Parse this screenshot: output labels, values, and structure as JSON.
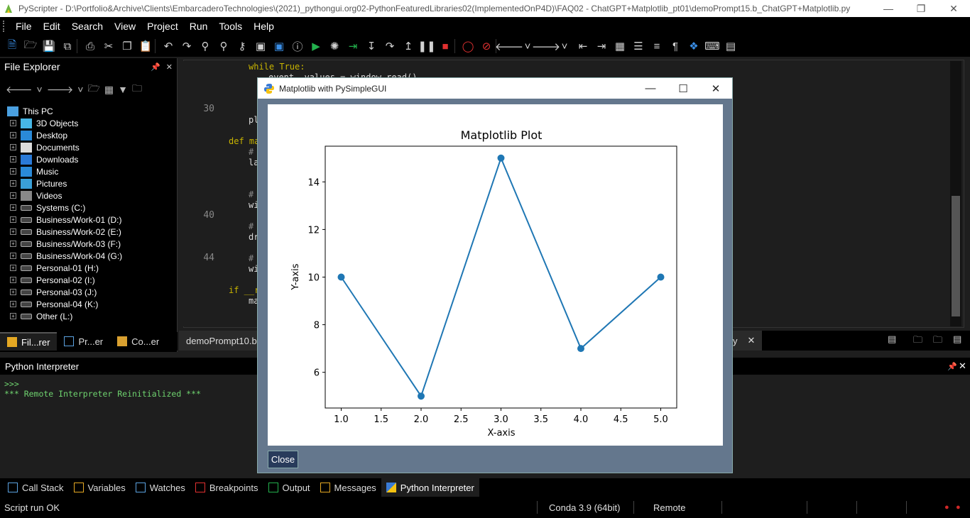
{
  "window": {
    "title": "PyScripter - D:\\Portfolio&Archive\\Clients\\EmbarcaderoTechnologies\\(2021)_pythongui.org02-PythonFeaturedLibraries02(ImplementedOnP4D)\\FAQ02 - ChatGPT+Matplotlib_pt01\\demoPrompt15.b_ChatGPT+Matplotlib.py"
  },
  "menu": [
    "File",
    "Edit",
    "Search",
    "View",
    "Project",
    "Run",
    "Tools",
    "Help"
  ],
  "file_explorer": {
    "title": "File Explorer",
    "root": "This PC",
    "items": [
      {
        "label": "3D Objects",
        "icon": "folder-3d-icon"
      },
      {
        "label": "Desktop",
        "icon": "folder-desktop-icon"
      },
      {
        "label": "Documents",
        "icon": "folder-documents-icon"
      },
      {
        "label": "Downloads",
        "icon": "folder-downloads-icon"
      },
      {
        "label": "Music",
        "icon": "folder-music-icon"
      },
      {
        "label": "Pictures",
        "icon": "folder-pictures-icon"
      },
      {
        "label": "Videos",
        "icon": "folder-videos-icon"
      },
      {
        "label": "Systems (C:)",
        "icon": "drive-icon"
      },
      {
        "label": "Business/Work-01 (D:)",
        "icon": "drive-icon"
      },
      {
        "label": "Business/Work-02 (E:)",
        "icon": "drive-icon"
      },
      {
        "label": "Business/Work-03 (F:)",
        "icon": "drive-icon"
      },
      {
        "label": "Business/Work-04 (G:)",
        "icon": "drive-icon"
      },
      {
        "label": "Personal-01 (H:)",
        "icon": "drive-icon"
      },
      {
        "label": "Personal-02 (I:)",
        "icon": "drive-icon"
      },
      {
        "label": "Personal-03 (J:)",
        "icon": "drive-icon"
      },
      {
        "label": "Personal-04 (K:)",
        "icon": "drive-icon"
      },
      {
        "label": "Other (L:)",
        "icon": "drive-icon"
      }
    ],
    "tabs": [
      "Fil...rer",
      "Pr...er",
      "Co...er"
    ]
  },
  "editor": {
    "line_numbers": [
      "30",
      "40",
      "44"
    ],
    "code": {
      "while_line": "while True:",
      "event_line": "event, values = window.read()",
      "pl": "pl",
      "def_ma": "def ma",
      "hash1": "#",
      "la": "la",
      "hash2": "#",
      "wi1": "wi",
      "hash3": "#",
      "dr": "dr",
      "hash4": "#",
      "wi2": "wi",
      "if_r": "if __r",
      "ma": "ma"
    },
    "tabs": [
      "demoPrompt10.b",
      "y"
    ]
  },
  "python_interpreter": {
    "title": "Python Interpreter",
    "prompt": ">>>",
    "message": "*** Remote Interpreter Reinitialized ***"
  },
  "bottom_tabs": [
    "Call Stack",
    "Variables",
    "Watches",
    "Breakpoints",
    "Output",
    "Messages",
    "Python Interpreter"
  ],
  "status": {
    "left": "Script run OK",
    "env": "Conda 3.9 (64bit)",
    "mode": "Remote"
  },
  "dialog": {
    "title": "Matplotlib with PySimpleGUI",
    "close_label": "Close"
  },
  "chart_data": {
    "type": "line",
    "title": "Matplotlib Plot",
    "xlabel": "X-axis",
    "ylabel": "Y-axis",
    "x": [
      1,
      2,
      3,
      4,
      5
    ],
    "y": [
      10,
      5,
      15,
      7,
      10
    ],
    "xlim": [
      0.8,
      5.2
    ],
    "ylim": [
      4.5,
      15.5
    ],
    "xticks": [
      "1.0",
      "1.5",
      "2.0",
      "2.5",
      "3.0",
      "3.5",
      "4.0",
      "4.5",
      "5.0"
    ],
    "xtick_values": [
      1.0,
      1.5,
      2.0,
      2.5,
      3.0,
      3.5,
      4.0,
      4.5,
      5.0
    ],
    "yticks": [
      "6",
      "8",
      "10",
      "12",
      "14"
    ],
    "ytick_values": [
      6,
      8,
      10,
      12,
      14
    ],
    "color": "#1f77b4",
    "grid": false
  }
}
